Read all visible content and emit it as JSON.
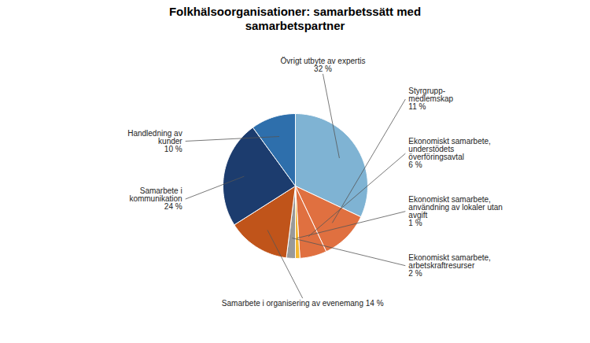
{
  "chart_data": {
    "type": "pie",
    "title": "Folkhälsoorganisationer: samarbetssätt med\nsamarbetspartner",
    "categories": [
      "Övrigt utbyte av expertis\n32 %",
      "Styrgrupp-\nmedlemskap\n11 %",
      "Ekonomiskt samarbete,\nunderstödets\növerföringsavtal\n6 %",
      "Ekonomiskt samarbete,\nanvändning av lokaler utan\navgift\n1 %",
      "Ekonomiskt samarbete,\narbetskraftresurser\n2 %",
      "Samarbete i organisering av evenemang 14 %",
      "Samarbete i\nkommunikation\n24 %",
      "Handledning av\nkunder\n10 %"
    ],
    "values": [
      32,
      11,
      6,
      1,
      2,
      14,
      24,
      10
    ],
    "colors": [
      "#7fb3d3",
      "#e07040",
      "#e07040",
      "#f5b830",
      "#999999",
      "#c0541a",
      "#1c3c6e",
      "#2e6fac"
    ]
  }
}
